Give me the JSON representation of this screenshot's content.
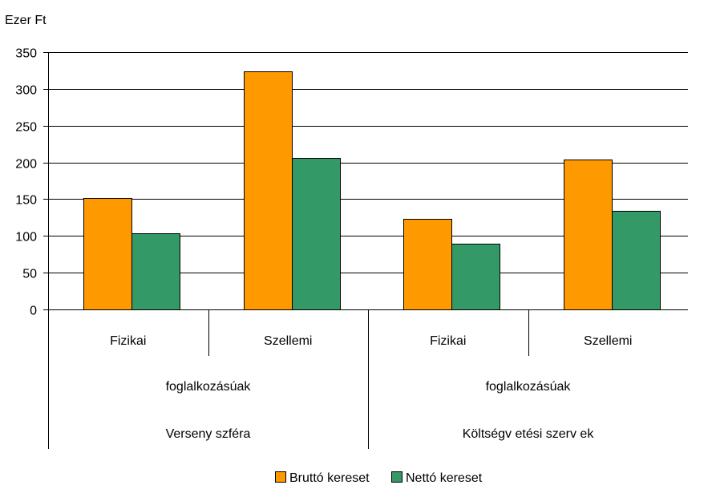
{
  "chart_data": {
    "type": "bar",
    "unit_label": "Ezer Ft",
    "ylim": [
      0,
      350
    ],
    "yticks": [
      0,
      50,
      100,
      150,
      200,
      250,
      300,
      350
    ],
    "grid": true,
    "categories": [
      "Fizikai",
      "Szellemi",
      "Fizikai",
      "Szellemi"
    ],
    "category_groups": [
      {
        "line1": "foglalkozásúak",
        "line2": "Verseny szféra",
        "span": [
          0,
          1
        ]
      },
      {
        "line1": "foglalkozásúak",
        "line2": "Költségv etési szerv ek",
        "span": [
          2,
          3
        ]
      }
    ],
    "series": [
      {
        "name": "Bruttó kereset",
        "color": "#FF9900",
        "values": [
          152,
          324,
          123,
          204
        ]
      },
      {
        "name": "Nettó kereset",
        "color": "#339966",
        "values": [
          104,
          206,
          89,
          134
        ]
      }
    ],
    "legend_position": "bottom"
  }
}
